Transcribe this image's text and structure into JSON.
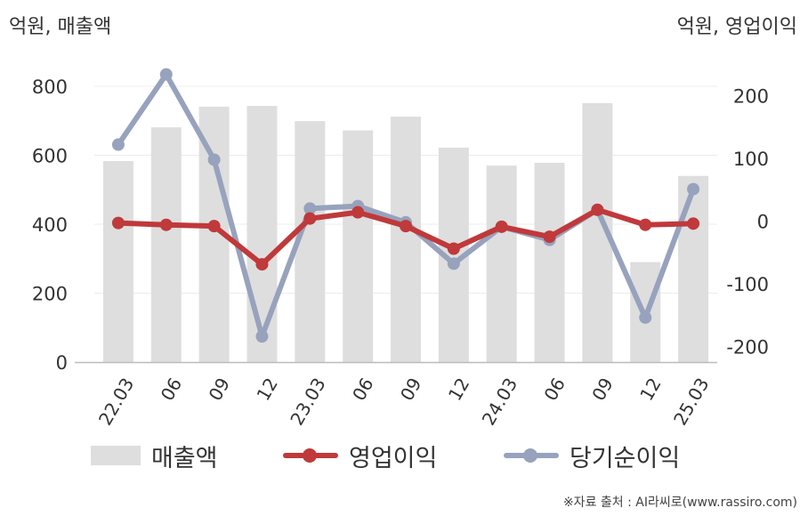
{
  "unit_left": "억원, 매출액",
  "unit_right": "억원, 영업이익",
  "source": "※자료 출처 : AI라씨로(www.rassiro.com)",
  "colors": {
    "bar": "#dedede",
    "operating_profit": "#c0393b",
    "net_income": "#97a2bd",
    "axis": "#bbbbbb",
    "grid": "#ececec"
  },
  "legend": {
    "revenue": "매출액",
    "operating_profit": "영업이익",
    "net_income": "당기순이익"
  },
  "chart_data": {
    "type": "bar",
    "categories": [
      "22.03",
      "06",
      "09",
      "12",
      "23.03",
      "06",
      "09",
      "12",
      "24.03",
      "06",
      "09",
      "12",
      "25.03"
    ],
    "series": [
      {
        "name": "매출액",
        "type": "bar",
        "axis": "left",
        "values": [
          583,
          681,
          741,
          743,
          699,
          672,
          712,
          622,
          570,
          578,
          751,
          290,
          540
        ]
      },
      {
        "name": "영업이익",
        "type": "line",
        "axis": "right",
        "values": [
          -3,
          -6,
          -8,
          -69,
          4,
          14,
          -8,
          -44,
          -9,
          -25,
          18,
          -6,
          -4
        ]
      },
      {
        "name": "당기순이익",
        "type": "line",
        "axis": "right",
        "values": [
          122,
          234,
          98,
          -184,
          20,
          24,
          -2,
          -68,
          -9,
          -30,
          18,
          -154,
          51
        ]
      }
    ],
    "y_left": {
      "ylim": [
        0,
        800
      ],
      "ticks": [
        0,
        200,
        400,
        600,
        800
      ]
    },
    "y_right": {
      "ylim": [
        -225,
        225
      ],
      "ticks": [
        -200,
        -100,
        0,
        100,
        200
      ]
    },
    "grid": true,
    "legend_position": "bottom"
  }
}
